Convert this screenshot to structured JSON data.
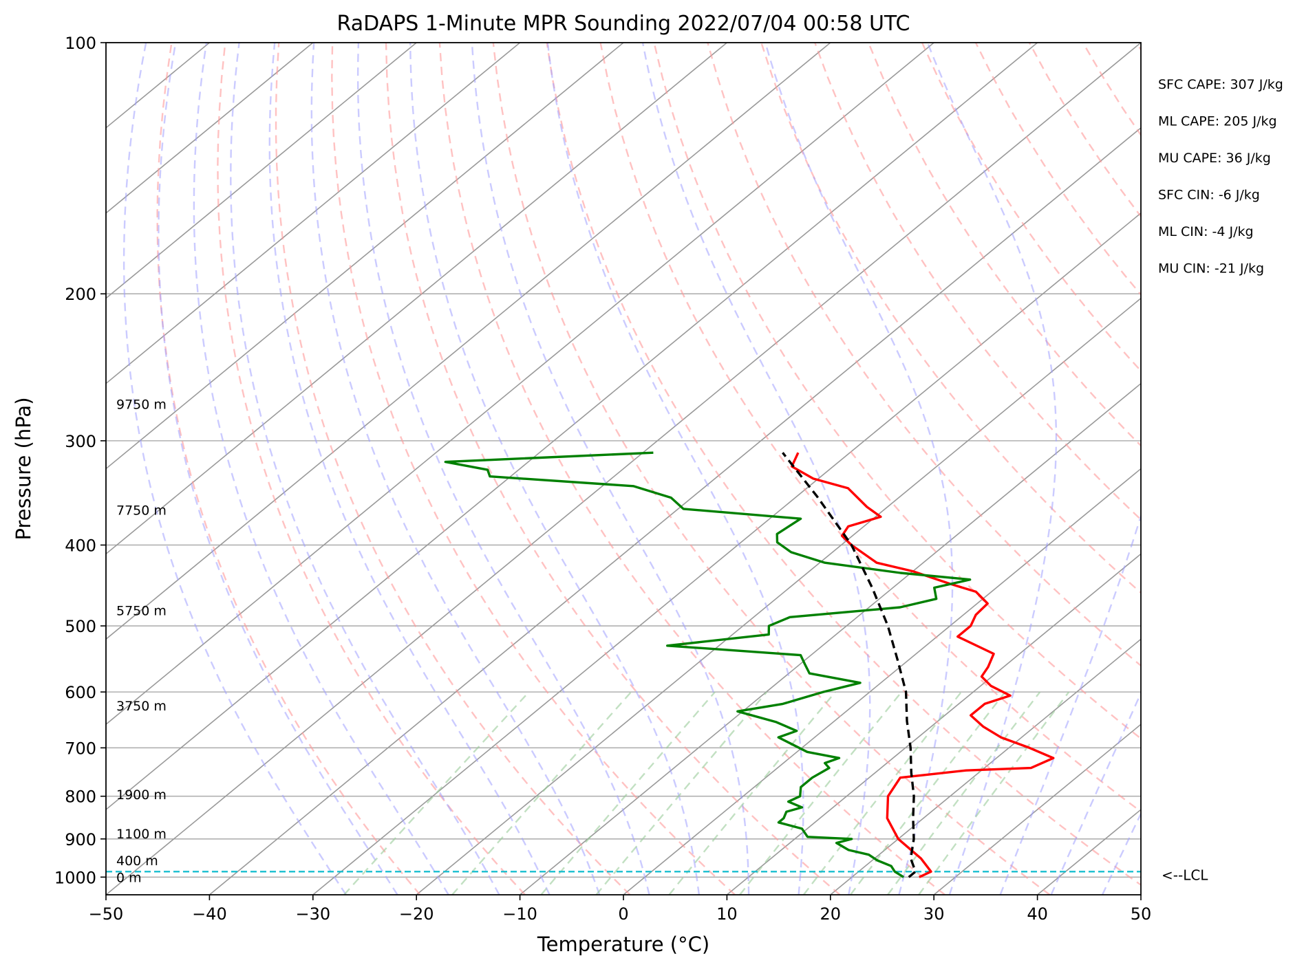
{
  "chart_data": {
    "type": "skew-t",
    "title": "RaDAPS 1-Minute MPR Sounding 2022/07/04 00:58 UTC",
    "xlabel": "Temperature (°C)",
    "ylabel": "Pressure (hPa)",
    "xlim": [
      -50,
      50
    ],
    "ylim": [
      1050,
      100
    ],
    "yscale": "log",
    "x_ticks": [
      -50,
      -40,
      -30,
      -20,
      -10,
      0,
      10,
      20,
      30,
      40,
      50
    ],
    "x_tick_labels": [
      "−50",
      "−40",
      "−30",
      "−20",
      "−10",
      "0",
      "10",
      "20",
      "30",
      "40",
      "50"
    ],
    "y_ticks": [
      100,
      200,
      300,
      400,
      500,
      600,
      700,
      800,
      900,
      1000
    ],
    "y_tick_labels": [
      "100",
      "200",
      "300",
      "400",
      "500",
      "600",
      "700",
      "800",
      "900",
      "1000"
    ],
    "grid": true,
    "series": [
      {
        "kind": "temperature",
        "color": "#ff0000",
        "points": [
          [
            1000,
            26.5
          ],
          [
            985,
            27.0
          ],
          [
            950,
            24.5
          ],
          [
            900,
            20.0
          ],
          [
            850,
            16.5
          ],
          [
            800,
            14.0
          ],
          [
            760,
            13.0
          ],
          [
            745,
            18.5
          ],
          [
            740,
            24.5
          ],
          [
            720,
            25.5
          ],
          [
            700,
            22.0
          ],
          [
            680,
            18.0
          ],
          [
            660,
            15.0
          ],
          [
            640,
            12.5
          ],
          [
            620,
            12.5
          ],
          [
            606,
            14.0
          ],
          [
            590,
            11.0
          ],
          [
            575,
            9.0
          ],
          [
            560,
            8.5
          ],
          [
            540,
            7.5
          ],
          [
            515,
            2.0
          ],
          [
            500,
            2.0
          ],
          [
            485,
            1.2
          ],
          [
            470,
            1.0
          ],
          [
            455,
            -1.5
          ],
          [
            445,
            -5.0
          ],
          [
            430,
            -10.0
          ],
          [
            420,
            -14.5
          ],
          [
            400,
            -19.0
          ],
          [
            390,
            -21.0
          ],
          [
            380,
            -21.5
          ],
          [
            370,
            -19.5
          ],
          [
            360,
            -22.0
          ],
          [
            342,
            -26.0
          ],
          [
            333,
            -30.5
          ],
          [
            322,
            -34.0
          ],
          [
            310,
            -35.0
          ]
        ]
      },
      {
        "kind": "dewpoint",
        "color": "#008000",
        "points": [
          [
            1000,
            25.0
          ],
          [
            985,
            23.5
          ],
          [
            970,
            22.5
          ],
          [
            955,
            20.5
          ],
          [
            940,
            19.0
          ],
          [
            928,
            16.5
          ],
          [
            910,
            14.5
          ],
          [
            900,
            15.5
          ],
          [
            895,
            11.0
          ],
          [
            875,
            9.5
          ],
          [
            860,
            6.5
          ],
          [
            850,
            6.5
          ],
          [
            835,
            6.0
          ],
          [
            825,
            7.0
          ],
          [
            812,
            5.0
          ],
          [
            800,
            5.5
          ],
          [
            780,
            4.5
          ],
          [
            760,
            4.5
          ],
          [
            740,
            5.0
          ],
          [
            730,
            4.0
          ],
          [
            720,
            4.8
          ],
          [
            708,
            1.0
          ],
          [
            680,
            -3.5
          ],
          [
            668,
            -2.5
          ],
          [
            652,
            -5.5
          ],
          [
            633,
            -10.5
          ],
          [
            620,
            -7.0
          ],
          [
            600,
            -4.5
          ],
          [
            585,
            -2.0
          ],
          [
            570,
            -8.0
          ],
          [
            556,
            -9.5
          ],
          [
            542,
            -11.0
          ],
          [
            528,
            -25.0
          ],
          [
            512,
            -16.5
          ],
          [
            500,
            -17.5
          ],
          [
            488,
            -16.5
          ],
          [
            475,
            -7.0
          ],
          [
            464,
            -4.5
          ],
          [
            450,
            -6.0
          ],
          [
            440,
            -3.5
          ],
          [
            432,
            -11.0
          ],
          [
            420,
            -19.5
          ],
          [
            408,
            -24.0
          ],
          [
            397,
            -26.5
          ],
          [
            388,
            -27.5
          ],
          [
            372,
            -27.0
          ],
          [
            362,
            -39.5
          ],
          [
            351,
            -42.0
          ],
          [
            340,
            -47.0
          ],
          [
            331,
            -62.0
          ],
          [
            325,
            -63.0
          ],
          [
            318,
            -68.0
          ],
          [
            310,
            -49.0
          ]
        ]
      },
      {
        "kind": "parcel",
        "color": "#000000",
        "points": [
          [
            1000,
            25.5
          ],
          [
            985,
            25.5
          ],
          [
            950,
            23.5
          ],
          [
            900,
            21.5
          ],
          [
            850,
            19.0
          ],
          [
            800,
            16.5
          ],
          [
            750,
            13.5
          ],
          [
            700,
            10.5
          ],
          [
            650,
            7.0
          ],
          [
            600,
            3.5
          ],
          [
            550,
            -1.0
          ],
          [
            500,
            -6.0
          ],
          [
            450,
            -12.0
          ],
          [
            400,
            -19.0
          ],
          [
            350,
            -28.0
          ],
          [
            310,
            -36.5
          ]
        ]
      }
    ],
    "lcl": {
      "pressure": 985,
      "label": "<--LCL",
      "color": "#17becf"
    },
    "height_labels": [
      {
        "pressure": 1000,
        "label": "0 m"
      },
      {
        "pressure": 955,
        "label": "400 m"
      },
      {
        "pressure": 887,
        "label": "1100 m"
      },
      {
        "pressure": 796,
        "label": "1900 m"
      },
      {
        "pressure": 623,
        "label": "3750 m"
      },
      {
        "pressure": 479,
        "label": "5750 m"
      },
      {
        "pressure": 363,
        "label": "7750 m"
      },
      {
        "pressure": 271,
        "label": "9750 m"
      }
    ],
    "stats": [
      "SFC CAPE: 307 J/kg",
      "ML CAPE: 205 J/kg",
      "MU CAPE: 36 J/kg",
      "SFC CIN: -6 J/kg",
      "ML CIN: -4 J/kg",
      "MU CIN: -21 J/kg"
    ],
    "reference_lines": {
      "isotherms": {
        "color": "#999999",
        "start": -180,
        "end": 50,
        "step": 10
      },
      "dry_adiabats": {
        "color": "#ff9999",
        "thetas_K": [
          250,
          260,
          270,
          280,
          290,
          300,
          310,
          320,
          330,
          340,
          350,
          360,
          370,
          380,
          390,
          400,
          410,
          420,
          430
        ]
      },
      "moist_adiabats": {
        "color": "#a0a0ff",
        "start_temps_C": [
          -30,
          -25,
          -20,
          -15,
          -10,
          -5,
          0,
          5,
          10,
          15,
          20,
          25,
          30,
          35,
          40,
          45
        ]
      },
      "mixing_ratio": {
        "color": "#99cc99",
        "values_gkg": [
          0.4,
          1,
          2,
          3,
          5,
          8,
          12,
          16,
          20,
          24
        ],
        "top_pressure": 600
      }
    }
  }
}
